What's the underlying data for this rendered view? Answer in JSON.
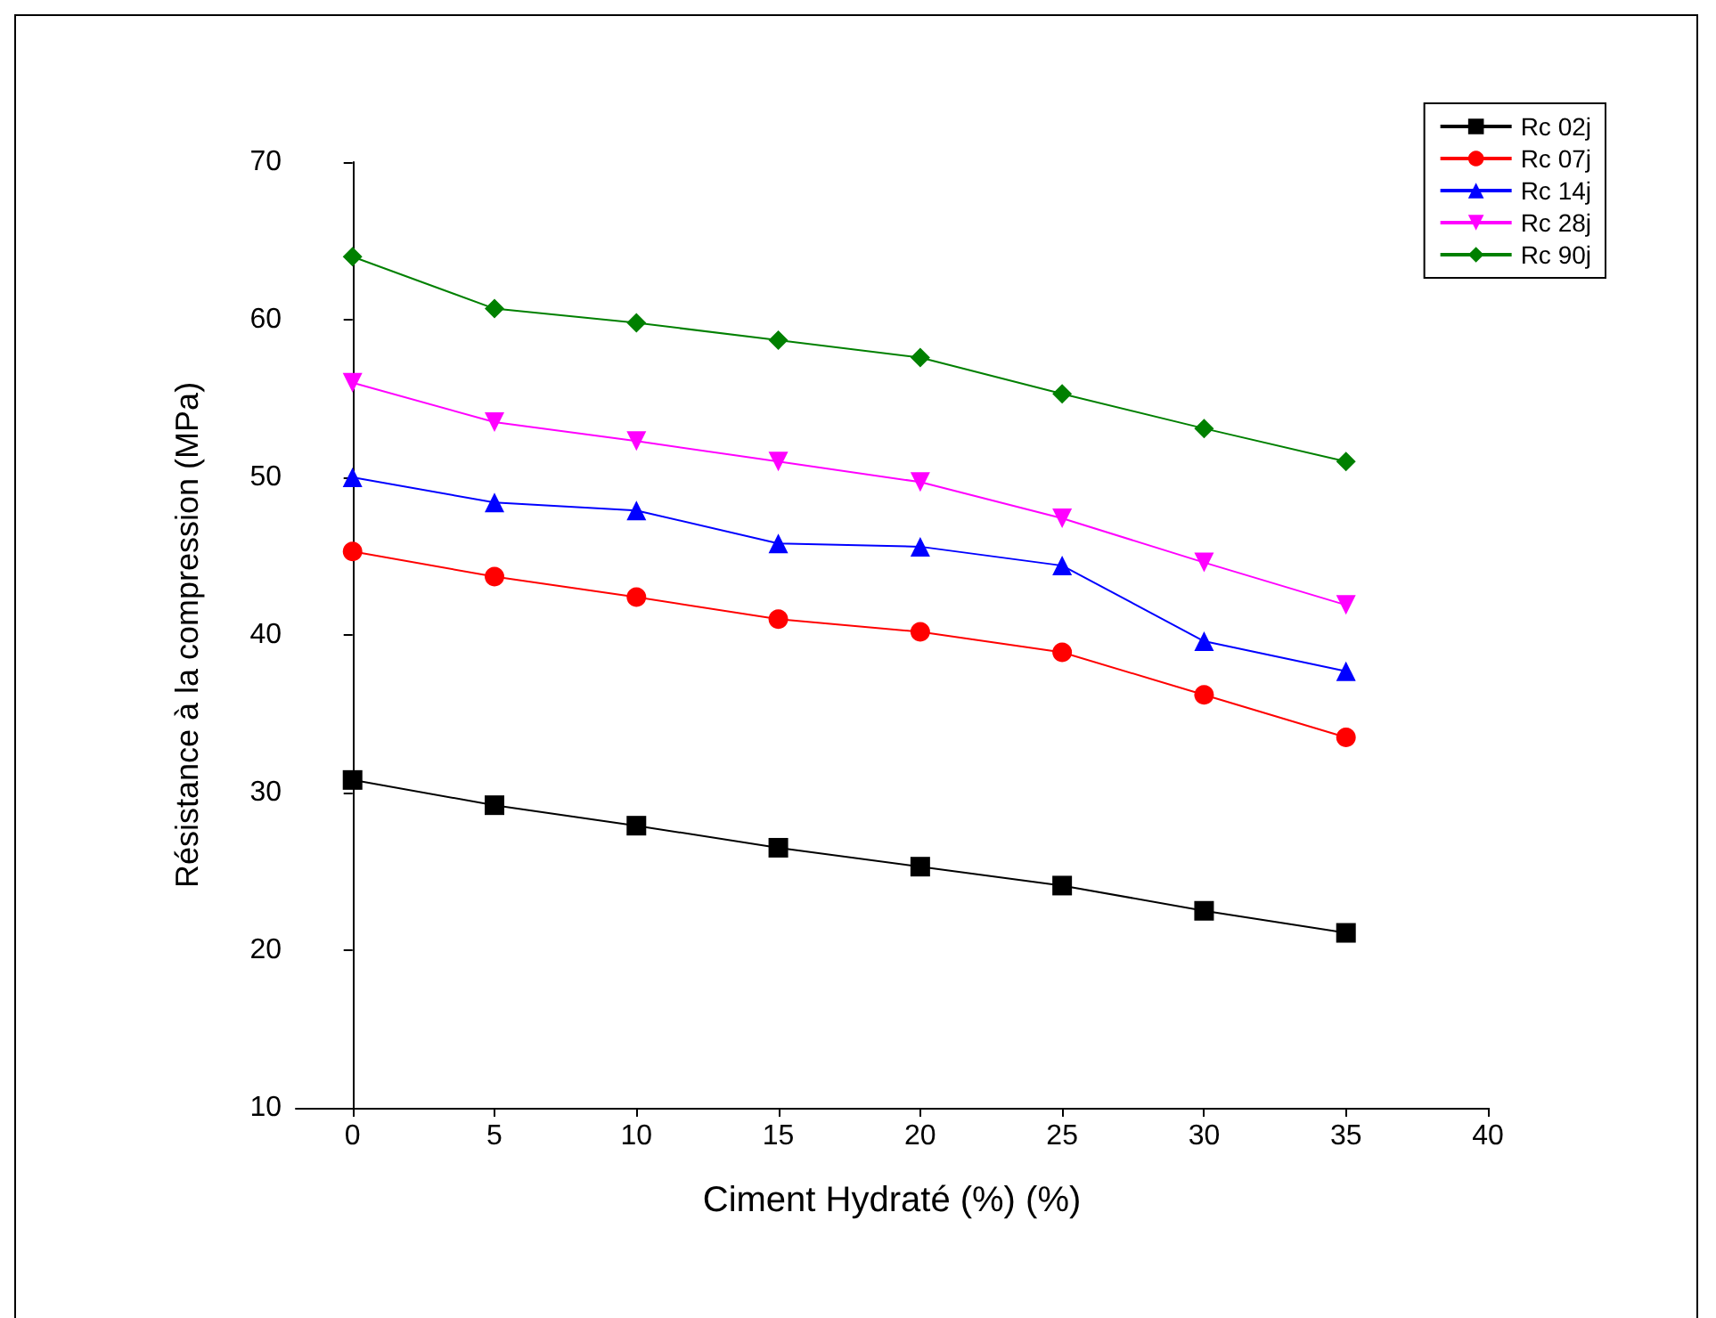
{
  "chart_data": {
    "type": "line",
    "xlabel": "Ciment Hydraté (%) (%)",
    "ylabel": "Résistance à la compression (MPa)",
    "x": [
      0,
      5,
      10,
      15,
      20,
      25,
      30,
      35
    ],
    "xlim": [
      -2,
      40
    ],
    "xticks": [
      0,
      5,
      10,
      15,
      20,
      25,
      30,
      35,
      40
    ],
    "ylim": [
      10,
      70
    ],
    "yticks": [
      10,
      20,
      30,
      40,
      50,
      60,
      70
    ],
    "grid": false,
    "legend": "top right",
    "line_style": "solid",
    "series": [
      {
        "name": "Rc 02j",
        "color": "#000000",
        "marker": "square",
        "values": [
          30.8,
          29.2,
          27.9,
          26.5,
          25.3,
          24.1,
          22.5,
          21.1
        ]
      },
      {
        "name": "Rc 07j",
        "color": "#ff0000",
        "marker": "circle",
        "values": [
          45.3,
          43.7,
          42.4,
          41.0,
          40.2,
          38.9,
          36.2,
          33.5
        ]
      },
      {
        "name": "Rc 14j",
        "color": "#0000ff",
        "marker": "triangle",
        "values": [
          50.0,
          48.4,
          47.9,
          45.8,
          45.6,
          44.4,
          39.6,
          37.7
        ]
      },
      {
        "name": "Rc 28j",
        "color": "#ff00ff",
        "marker": "triangle-down",
        "values": [
          56.0,
          53.5,
          52.3,
          51.0,
          49.7,
          47.4,
          44.6,
          41.9
        ]
      },
      {
        "name": "Rc 90j",
        "color": "#008000",
        "marker": "diamond",
        "values": [
          64.0,
          60.7,
          59.8,
          58.7,
          57.6,
          55.3,
          53.1,
          51.0
        ]
      }
    ]
  }
}
